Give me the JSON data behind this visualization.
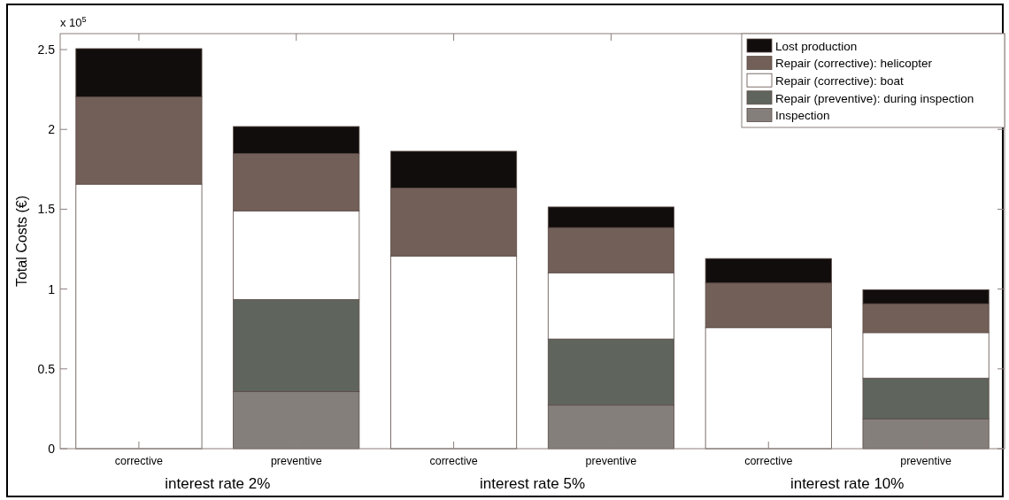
{
  "chart_data": {
    "type": "bar",
    "stacked": true,
    "ylabel": "Total Costs (€)",
    "categories": [
      "corrective",
      "preventive",
      "corrective",
      "preventive",
      "corrective",
      "preventive"
    ],
    "series": [
      {
        "name": "Inspection",
        "color": "#857f7c",
        "values": [
          0,
          0.357,
          0,
          0.273,
          0,
          0.187
        ]
      },
      {
        "name": "Repair (preventive): during inspection",
        "color": "#5f645d",
        "values": [
          0,
          0.577,
          0,
          0.414,
          0,
          0.255
        ]
      },
      {
        "name": "Repair (corrective): boat",
        "color": "#ffffff",
        "values": [
          1.657,
          0.556,
          1.207,
          0.415,
          0.759,
          0.285
        ]
      },
      {
        "name": "Repair (corrective): helicopter",
        "color": "#725f58",
        "values": [
          0.547,
          0.359,
          0.426,
          0.283,
          0.279,
          0.181
        ]
      },
      {
        "name": "Lost production",
        "color": "#110d0c",
        "values": [
          0.302,
          0.169,
          0.23,
          0.129,
          0.153,
          0.088
        ]
      }
    ],
    "ylim": [
      0,
      2.6
    ],
    "yticks": [
      0,
      0.5,
      1,
      1.5,
      2,
      2.5
    ],
    "annotations": [
      "x 10$^{5}$",
      "interest rate 2%",
      "interest rate 5%",
      "interest rate 10%"
    ],
    "legend": "top right"
  }
}
